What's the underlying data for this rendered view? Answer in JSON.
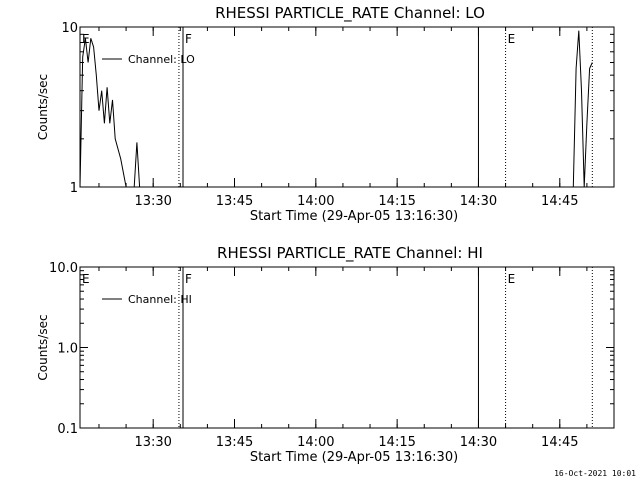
{
  "chart_data": [
    {
      "type": "line",
      "title": "RHESSI PARTICLE_RATE Channel: LO",
      "xlabel": "Start Time (29-Apr-05 13:16:30)",
      "ylabel": "Counts/sec",
      "yscale": "log",
      "ylim": [
        1,
        10
      ],
      "xlim": [
        "13:16:30",
        "14:55:00"
      ],
      "y_ticks": [
        "1",
        "10"
      ],
      "x_ticks": [
        "13:30",
        "13:45",
        "14:00",
        "14:15",
        "14:30",
        "14:45"
      ],
      "legend": {
        "placement": "top-left",
        "entries": [
          "Channel: LO"
        ]
      },
      "events": [
        {
          "label": "E",
          "time": "13:16:30",
          "style": "none"
        },
        {
          "label": "F",
          "time": "13:35:30",
          "style": "solid"
        },
        {
          "label": "",
          "time": "13:34:45",
          "style": "dotted"
        },
        {
          "label": "",
          "time": "14:30:00",
          "style": "solid"
        },
        {
          "label": "E",
          "time": "14:35:00",
          "style": "dotted"
        },
        {
          "label": "",
          "time": "14:51:00",
          "style": "dotted"
        }
      ],
      "series": [
        {
          "name": "Channel: LO",
          "color": "#000000",
          "segments": [
            [
              [
                "13:16:30",
                1.0
              ],
              [
                "13:17:00",
                6.5
              ],
              [
                "13:17:30",
                8.5
              ],
              [
                "13:18:00",
                6.0
              ],
              [
                "13:18:30",
                8.5
              ],
              [
                "13:19:00",
                7.5
              ],
              [
                "13:19:30",
                5.0
              ],
              [
                "13:20:00",
                3.0
              ],
              [
                "13:20:30",
                4.0
              ],
              [
                "13:21:00",
                2.5
              ],
              [
                "13:21:30",
                4.2
              ],
              [
                "13:22:00",
                2.5
              ],
              [
                "13:22:30",
                3.5
              ],
              [
                "13:23:00",
                2.0
              ],
              [
                "13:24:00",
                1.5
              ],
              [
                "13:25:00",
                1.0
              ]
            ],
            [
              [
                "13:26:30",
                1.0
              ],
              [
                "13:27:00",
                1.9
              ],
              [
                "13:27:30",
                1.0
              ]
            ],
            [
              [
                "14:47:30",
                1.0
              ],
              [
                "14:48:00",
                5.5
              ],
              [
                "14:48:30",
                9.5
              ],
              [
                "14:49:00",
                4.0
              ],
              [
                "14:49:30",
                1.0
              ],
              [
                "14:50:00",
                2.5
              ],
              [
                "14:50:30",
                5.5
              ],
              [
                "14:51:00",
                6.0
              ]
            ]
          ]
        }
      ]
    },
    {
      "type": "line",
      "title": "RHESSI PARTICLE_RATE Channel: HI",
      "xlabel": "Start Time (29-Apr-05 13:16:30)",
      "ylabel": "Counts/sec",
      "yscale": "log",
      "ylim": [
        0.1,
        10
      ],
      "xlim": [
        "13:16:30",
        "14:55:00"
      ],
      "y_ticks": [
        "0.1",
        "1.0",
        "10.0"
      ],
      "x_ticks": [
        "13:30",
        "13:45",
        "14:00",
        "14:15",
        "14:30",
        "14:45"
      ],
      "legend": {
        "placement": "top-left",
        "entries": [
          "Channel: HI"
        ]
      },
      "events": [
        {
          "label": "E",
          "time": "13:16:30",
          "style": "none"
        },
        {
          "label": "F",
          "time": "13:35:30",
          "style": "solid"
        },
        {
          "label": "",
          "time": "13:34:45",
          "style": "dotted"
        },
        {
          "label": "",
          "time": "14:30:00",
          "style": "solid"
        },
        {
          "label": "E",
          "time": "14:35:00",
          "style": "dotted"
        },
        {
          "label": "",
          "time": "14:51:00",
          "style": "dotted"
        }
      ],
      "series": [
        {
          "name": "Channel: HI",
          "color": "#000000",
          "segments": []
        }
      ]
    }
  ],
  "footer": {
    "timestamp": "16-Oct-2021 10:01"
  }
}
